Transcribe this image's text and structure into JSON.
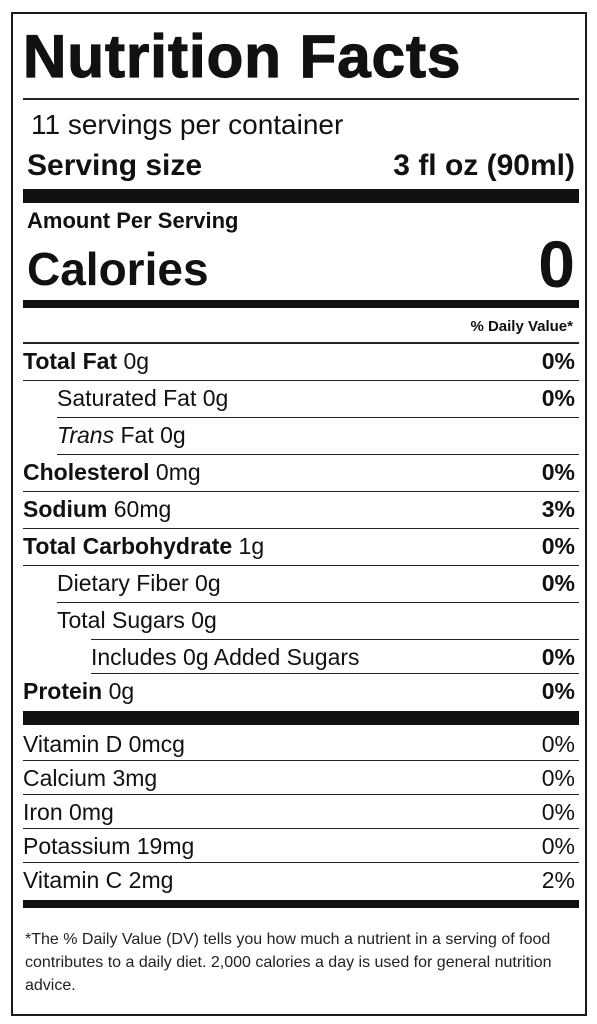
{
  "title": "Nutrition Facts",
  "servings_per_container": "11 servings per container",
  "serving_size": {
    "label": "Serving size",
    "value": "3 fl oz (90ml)"
  },
  "amount_per_serving": "Amount Per Serving",
  "calories": {
    "label": "Calories",
    "value": "0"
  },
  "daily_value_header": "% Daily Value*",
  "nutrients": [
    {
      "name": "Total Fat",
      "amount": "0g",
      "dv": "0%"
    },
    {
      "name": "Saturated Fat",
      "amount": "0g",
      "dv": "0%"
    },
    {
      "name": "Trans",
      "name_rest": "Fat 0g",
      "dv": ""
    },
    {
      "name": "Cholesterol",
      "amount": "0mg",
      "dv": "0%"
    },
    {
      "name": "Sodium",
      "amount": "60mg",
      "dv": "3%"
    },
    {
      "name": "Total Carbohydrate",
      "amount": "1g",
      "dv": "0%"
    },
    {
      "name": "Dietary Fiber",
      "amount": "0g",
      "dv": "0%"
    },
    {
      "name": "Total Sugars",
      "amount": "0g",
      "dv": ""
    },
    {
      "name": "Includes 0g Added Sugars",
      "amount": "",
      "dv": "0%"
    },
    {
      "name": "Protein",
      "amount": "0g",
      "dv": "0%"
    }
  ],
  "vitamins": [
    {
      "label": "Vitamin D 0mcg",
      "dv": "0%"
    },
    {
      "label": "Calcium 3mg",
      "dv": "0%"
    },
    {
      "label": "Iron 0mg",
      "dv": "0%"
    },
    {
      "label": "Potassium 19mg",
      "dv": "0%"
    },
    {
      "label": "Vitamin C 2mg",
      "dv": "2%"
    }
  ],
  "footnote": "*The % Daily Value (DV) tells you how much a nutrient in a serving of food contributes to a daily diet. 2,000 calories a day is used for general nutrition advice."
}
